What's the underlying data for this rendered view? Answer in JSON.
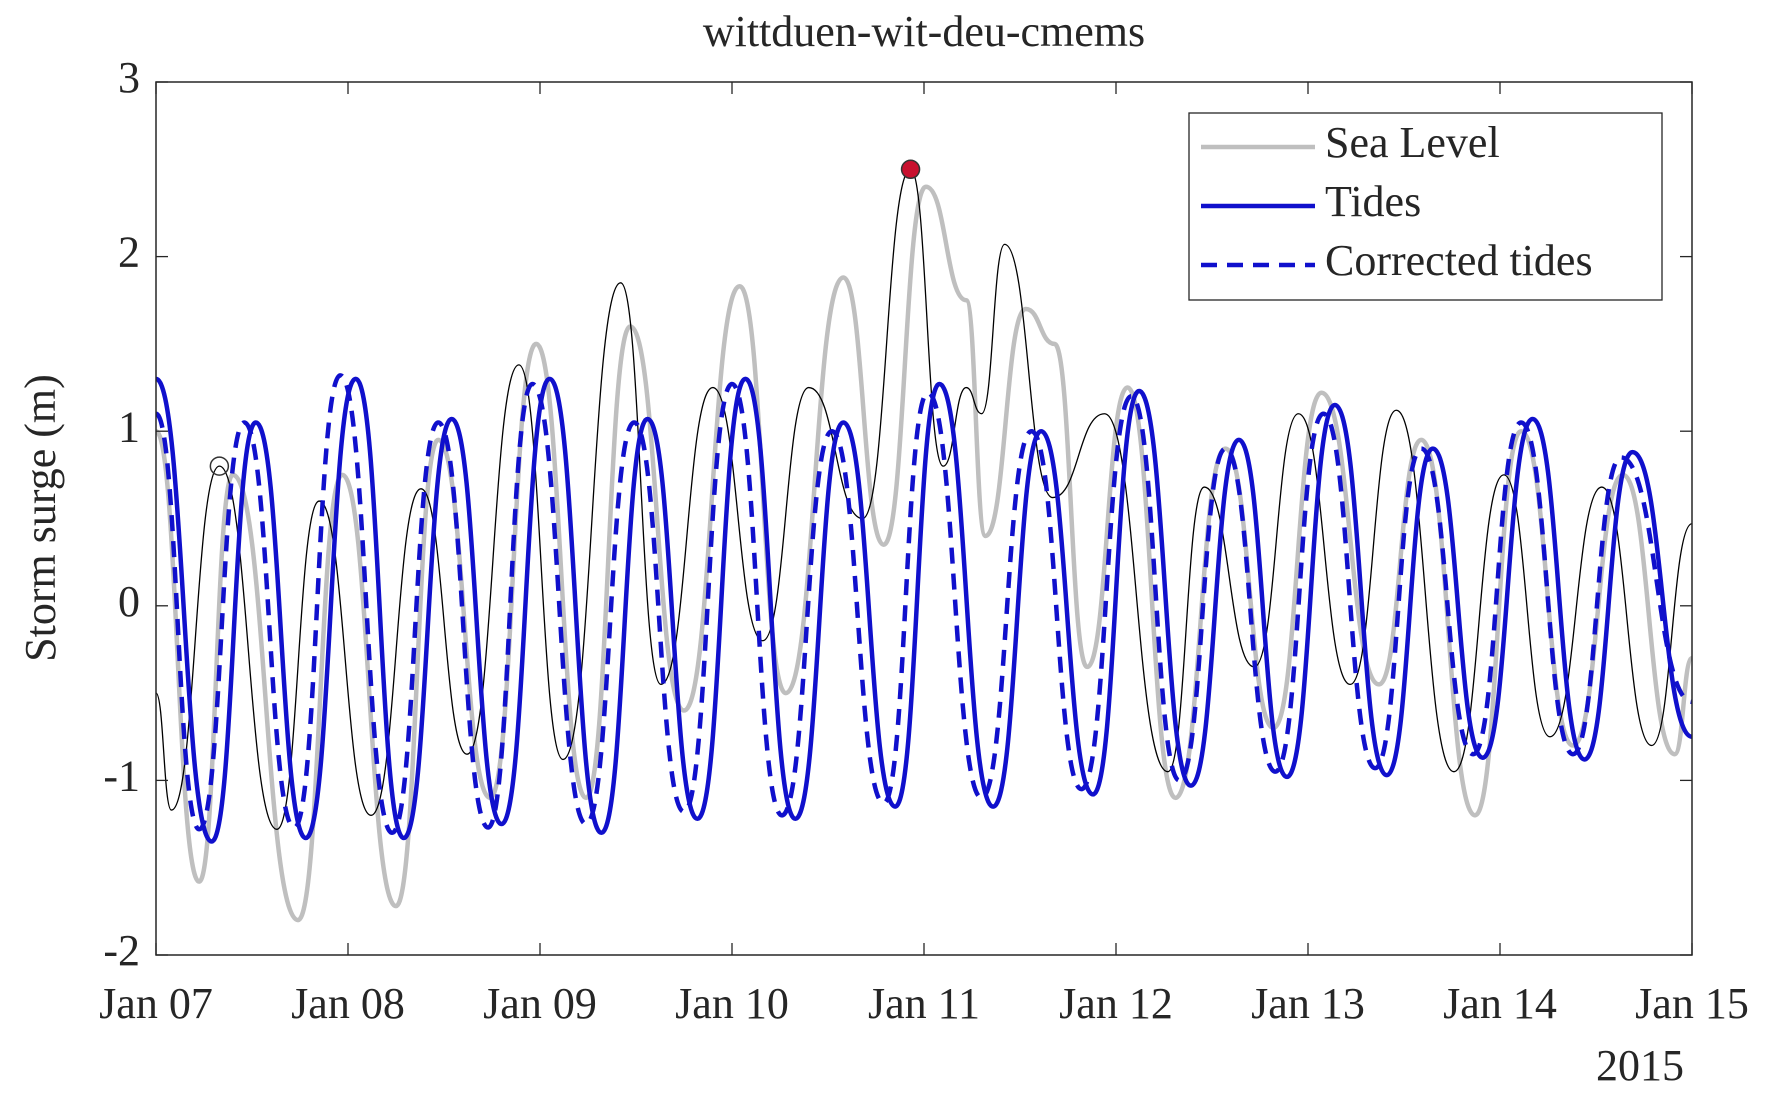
{
  "chart_data": {
    "type": "line",
    "title": "wittduen-wit-deu-cmems",
    "y_label": "Storm surge (m)",
    "x_sublabel": "2015",
    "xlim": [
      0,
      8
    ],
    "xticks": [
      {
        "value": 0,
        "label": "Jan 07"
      },
      {
        "value": 1,
        "label": "Jan 08"
      },
      {
        "value": 2,
        "label": "Jan 09"
      },
      {
        "value": 3,
        "label": "Jan 10"
      },
      {
        "value": 4,
        "label": "Jan 11"
      },
      {
        "value": 5,
        "label": "Jan 12"
      },
      {
        "value": 6,
        "label": "Jan 13"
      },
      {
        "value": 7,
        "label": "Jan 14"
      },
      {
        "value": 8,
        "label": "Jan 15"
      }
    ],
    "ylim": [
      -2,
      3
    ],
    "yticks": [
      -2,
      -1,
      0,
      1,
      2,
      3
    ],
    "legend": "top-right",
    "series": [
      {
        "name": "Sea Level",
        "color": "#bfbfbf",
        "style": "solid",
        "x": [
          0,
          0.225,
          0.4,
          0.74,
          0.97,
          1.25,
          1.47,
          1.74,
          1.98,
          2.24,
          2.47,
          2.75,
          3.04,
          3.28,
          3.58,
          3.79,
          4.01,
          4.22,
          4.32,
          4.53,
          4.68,
          4.85,
          5.06,
          5.31,
          5.57,
          5.82,
          6.07,
          6.37,
          6.59,
          6.87,
          7.11,
          7.38,
          7.64,
          7.91,
          8
        ],
        "values": [
          1.0,
          -1.58,
          0.75,
          -1.8,
          0.75,
          -1.72,
          0.95,
          -1.1,
          1.5,
          -1.1,
          1.6,
          -0.6,
          1.83,
          -0.5,
          1.88,
          0.35,
          2.4,
          1.75,
          0.4,
          1.7,
          1.5,
          -0.35,
          1.25,
          -1.1,
          0.9,
          -0.7,
          1.22,
          -0.45,
          0.95,
          -1.2,
          1.0,
          -0.8,
          0.75,
          -0.85,
          -0.3
        ]
      },
      {
        "color": "#000000",
        "style": "solid",
        "x": [
          0,
          0.08,
          0.33,
          0.63,
          0.85,
          1.12,
          1.38,
          1.62,
          1.89,
          2.12,
          2.42,
          2.63,
          2.9,
          3.16,
          3.4,
          3.68,
          3.93,
          4.1,
          4.22,
          4.3,
          4.42,
          4.67,
          4.94,
          5.27,
          5.46,
          5.72,
          5.95,
          6.22,
          6.46,
          6.76,
          7.02,
          7.26,
          7.53,
          7.79,
          8
        ],
        "values": [
          -0.5,
          -1.17,
          0.8,
          -1.28,
          0.6,
          -1.2,
          0.67,
          -0.85,
          1.38,
          -0.88,
          1.85,
          -0.45,
          1.25,
          -0.2,
          1.25,
          0.5,
          2.5,
          0.8,
          1.25,
          1.1,
          2.07,
          0.62,
          1.1,
          -0.95,
          0.68,
          -0.35,
          1.1,
          -0.45,
          1.12,
          -0.95,
          0.75,
          -0.75,
          0.68,
          -0.8,
          0.47
        ]
      },
      {
        "name": "Corrected tides",
        "color": "#1010cc",
        "style": "dashed",
        "x": [
          0,
          0.225,
          0.46,
          0.72,
          0.96,
          1.23,
          1.47,
          1.73,
          1.96,
          2.24,
          2.49,
          2.75,
          3.0,
          3.26,
          3.52,
          3.79,
          4.02,
          4.3,
          4.56,
          4.82,
          5.08,
          5.33,
          5.57,
          5.83,
          6.08,
          6.35,
          6.59,
          6.86,
          7.11,
          7.38,
          7.63,
          8
        ],
        "values": [
          1.1,
          -1.28,
          1.05,
          -1.27,
          1.32,
          -1.3,
          1.05,
          -1.27,
          1.27,
          -1.25,
          1.05,
          -1.18,
          1.27,
          -1.2,
          1.0,
          -1.13,
          1.22,
          -1.1,
          1.0,
          -1.05,
          1.2,
          -1.0,
          0.9,
          -0.95,
          1.1,
          -0.93,
          0.9,
          -0.85,
          1.05,
          -0.85,
          0.85,
          -0.55
        ]
      },
      {
        "name": "Tides",
        "color": "#1010cc",
        "style": "solid",
        "x": [
          0,
          0.29,
          0.52,
          0.78,
          1.04,
          1.29,
          1.54,
          1.8,
          2.05,
          2.32,
          2.56,
          2.82,
          3.07,
          3.33,
          3.58,
          3.85,
          4.08,
          4.36,
          4.61,
          4.88,
          5.12,
          5.39,
          5.64,
          5.89,
          6.14,
          6.41,
          6.65,
          6.91,
          7.17,
          7.44,
          7.69,
          8
        ],
        "values": [
          1.3,
          -1.35,
          1.05,
          -1.33,
          1.3,
          -1.33,
          1.07,
          -1.25,
          1.3,
          -1.3,
          1.07,
          -1.22,
          1.3,
          -1.22,
          1.05,
          -1.15,
          1.27,
          -1.15,
          1.0,
          -1.08,
          1.23,
          -1.03,
          0.95,
          -0.98,
          1.15,
          -0.97,
          0.9,
          -0.87,
          1.07,
          -0.88,
          0.88,
          -0.75
        ]
      }
    ],
    "legend_order": [
      0,
      3,
      2
    ],
    "markers": [
      {
        "x": 3.93,
        "y": 2.5,
        "color": "#c8102e"
      },
      {
        "x": 0.33,
        "y": 0.8,
        "color": "none"
      }
    ]
  }
}
